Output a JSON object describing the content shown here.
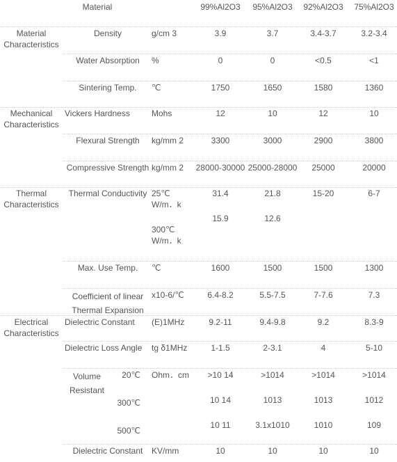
{
  "header": {
    "property": "Material",
    "grades": [
      "99%Al2O3",
      "95%Al2O3",
      "92%Al2O3",
      "75%Al2O3"
    ]
  },
  "groups": [
    {
      "name": "Material Characteristics",
      "rows": [
        {
          "property": "Density",
          "unit": "g/cm 3",
          "values": [
            "3.9",
            "3.7",
            "3.4-3.7",
            "3.2-3.4"
          ]
        },
        {
          "property": "Water Absorption",
          "unit": "%",
          "values": [
            "0",
            "0",
            "<0.5",
            "<1"
          ]
        },
        {
          "property": "Sintering Temp.",
          "unit": "℃",
          "values": [
            "1750",
            "1650",
            "1580",
            "1360"
          ]
        }
      ]
    },
    {
      "name": "Mechanical Characteristics",
      "rows": [
        {
          "property": "Vickers Hardness",
          "unit": "Mohs",
          "values": [
            "12",
            "10",
            "12",
            "10"
          ]
        },
        {
          "property": "Flexural Strength",
          "unit": "kg/mm 2",
          "values": [
            "3300",
            "3000",
            "2900",
            "3800"
          ]
        },
        {
          "property": "Compressive Strength",
          "unit": "kg/mm 2",
          "values": [
            "28000-30000",
            "25000-28000",
            "25000",
            "20000"
          ]
        }
      ]
    },
    {
      "name": "Thermal Characteristics",
      "rows": [
        {
          "property": "Thermal Conductivity",
          "sub": [
            {
              "unit": "25℃ W/m．k",
              "values": [
                "31.4",
                "21.8",
                "15-20",
                "6-7"
              ]
            },
            {
              "unit": "300℃ W/m．k",
              "values": [
                "15.9",
                "12.6"
              ]
            }
          ]
        },
        {
          "property": "Max. Use Temp.",
          "unit": "℃",
          "values": [
            "1600",
            "1500",
            "1500",
            "1300"
          ]
        },
        {
          "property": "Coefficient of linear Thermal Expansion",
          "unit": "x10-6/℃",
          "values": [
            "6.4-8.2",
            "5.5-7.5",
            "7-7.6",
            "7.3"
          ]
        }
      ]
    },
    {
      "name": "Electrical Characteristics",
      "rows": [
        {
          "property": "Dielectric Constant",
          "unit": "(E)1MHz",
          "values": [
            "9.2-11",
            "9.4-9.8",
            "9.2",
            "8.3-9"
          ]
        },
        {
          "property": "Dielectric Loss Angle",
          "unit": "tg δ1MHz",
          "values": [
            "1-1.5",
            "2-3.1",
            "4",
            "5-10"
          ]
        },
        {
          "property": "Volume Resistant",
          "unit": "Ohm．cm",
          "sub": [
            {
              "condition": "20℃",
              "values": [
                ">10 14",
                ">1014",
                ">1014",
                ">1014"
              ]
            },
            {
              "condition": "300℃",
              "values": [
                "10 14",
                "1013",
                "1013",
                "1012"
              ]
            },
            {
              "condition": "500℃",
              "values": [
                "10 11",
                "3.1x1010",
                "1010",
                "109"
              ]
            }
          ]
        },
        {
          "property": "Dielectric Constant",
          "unit": "KV/mm",
          "values": [
            "10",
            "10",
            "10",
            "10"
          ]
        }
      ]
    }
  ]
}
